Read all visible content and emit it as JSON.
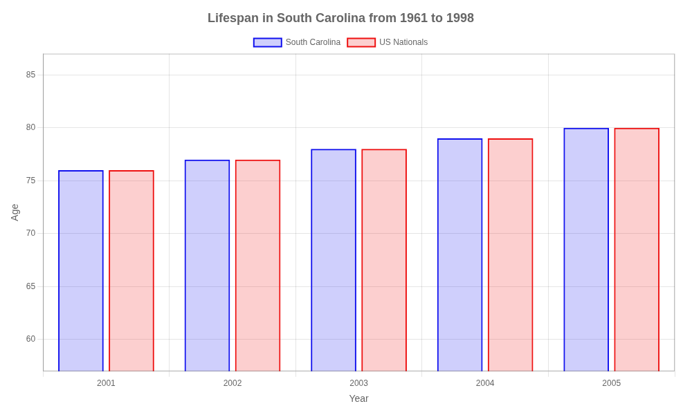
{
  "chart_data": {
    "type": "bar",
    "title": "Lifespan in South Carolina from 1961 to 1998",
    "xlabel": "Year",
    "ylabel": "Age",
    "categories": [
      "2001",
      "2002",
      "2003",
      "2004",
      "2005"
    ],
    "series": [
      {
        "name": "South Carolina",
        "color": "#1111ee",
        "values": [
          76,
          77,
          78,
          79,
          80
        ]
      },
      {
        "name": "US Nationals",
        "color": "#ee1111",
        "values": [
          76,
          77,
          78,
          79,
          80
        ]
      }
    ],
    "ylim": [
      57,
      87
    ],
    "yticks": [
      60,
      65,
      70,
      75,
      80,
      85
    ],
    "grid": true,
    "legend": "top"
  }
}
